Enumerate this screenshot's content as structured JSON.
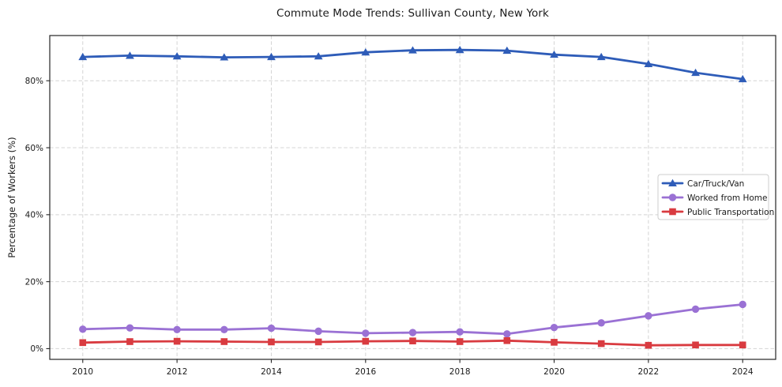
{
  "page": {
    "background": "#ffffff"
  },
  "chart_data": {
    "type": "line",
    "title": "Commute Mode Trends: Sullivan County, New York",
    "xlabel": "",
    "ylabel": "Percentage of Workers (%)",
    "x": [
      2010,
      2011,
      2012,
      2013,
      2014,
      2015,
      2016,
      2017,
      2018,
      2019,
      2020,
      2021,
      2022,
      2023,
      2024
    ],
    "series": [
      {
        "name": "Car/Truck/Van",
        "color": "#2e5cb8",
        "marker": "triangle-up",
        "values": [
          87.1,
          87.5,
          87.3,
          87.0,
          87.1,
          87.3,
          88.5,
          89.1,
          89.2,
          89.0,
          87.8,
          87.1,
          85.0,
          82.4,
          80.5
        ]
      },
      {
        "name": "Worked from Home",
        "color": "#9a71d4",
        "marker": "circle",
        "values": [
          5.8,
          6.2,
          5.7,
          5.7,
          6.1,
          5.2,
          4.6,
          4.8,
          5.0,
          4.4,
          6.3,
          7.7,
          9.8,
          11.8,
          13.2
        ]
      },
      {
        "name": "Public Transportation",
        "color": "#d93b40",
        "marker": "square",
        "values": [
          1.8,
          2.1,
          2.2,
          2.1,
          2.0,
          2.0,
          2.2,
          2.3,
          2.1,
          2.4,
          1.9,
          1.5,
          1.0,
          1.1,
          1.1
        ]
      }
    ],
    "xticks": [
      2010,
      2012,
      2014,
      2016,
      2018,
      2020,
      2022,
      2024
    ],
    "yticks": [
      0,
      20,
      40,
      60,
      80
    ],
    "ytick_suffix": "%",
    "xlim": [
      2009.3,
      2024.7
    ],
    "ylim": [
      -3.2,
      93.5
    ],
    "grid": true,
    "grid_color": "#d4d4d4",
    "spine_color": "#262626",
    "legend_position": "center-right",
    "legend_border_color": "#cccccc"
  }
}
